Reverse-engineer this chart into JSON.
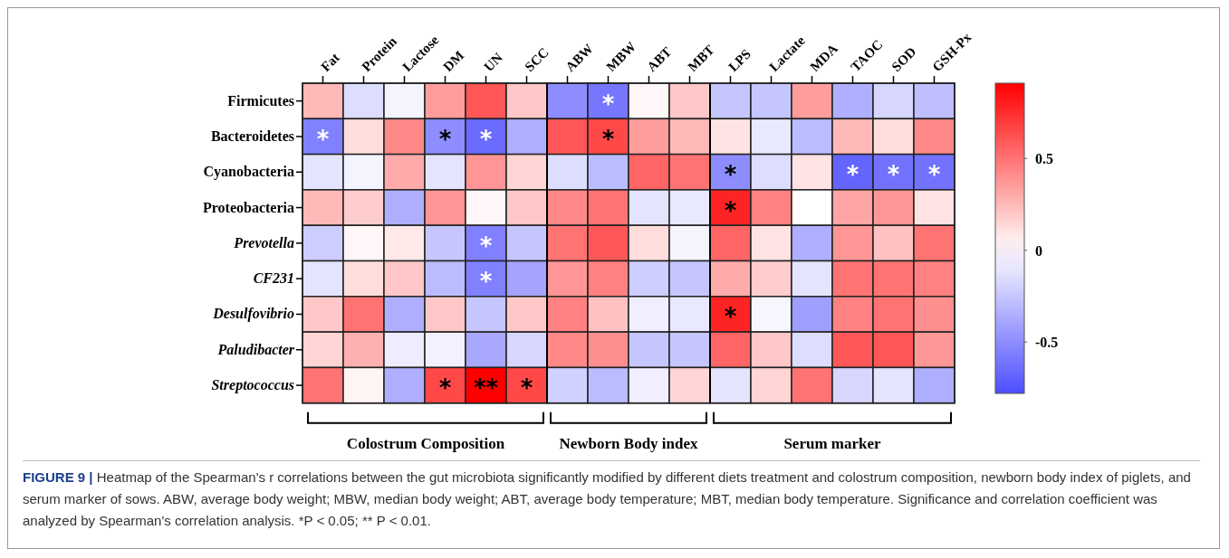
{
  "chart_data": {
    "type": "heatmap",
    "categories": [
      "Fat",
      "Protein",
      "Lactose",
      "DM",
      "UN",
      "SCC",
      "ABW",
      "MBW",
      "ABT",
      "MBT",
      "LPS",
      "Lactate",
      "MDA",
      "TAOC",
      "SOD",
      "GSH-Px"
    ],
    "y_categories": [
      "Firmicutes",
      "Bacteroidetes",
      "Cyanobacteria",
      "Proteobacteria",
      "Prevotella",
      "CF231",
      "Desulfovibrio",
      "Paludibacter",
      "Streptococcus"
    ],
    "cells": [
      [
        0.25,
        -0.15,
        -0.05,
        0.35,
        0.6,
        0.2,
        -0.5,
        -0.6,
        0.03,
        0.2,
        -0.25,
        -0.25,
        0.35,
        -0.35,
        -0.18,
        -0.28
      ],
      [
        -0.55,
        0.12,
        0.42,
        -0.5,
        -0.65,
        -0.35,
        0.6,
        0.65,
        0.35,
        0.25,
        0.1,
        -0.1,
        -0.3,
        0.25,
        0.12,
        0.42
      ],
      [
        -0.12,
        -0.05,
        0.3,
        -0.12,
        0.38,
        0.15,
        -0.15,
        -0.3,
        0.55,
        0.5,
        -0.5,
        -0.15,
        0.1,
        -0.68,
        -0.62,
        -0.62
      ],
      [
        0.25,
        0.18,
        -0.35,
        0.38,
        0.03,
        0.2,
        0.42,
        0.5,
        -0.12,
        -0.1,
        0.78,
        0.45,
        0.0,
        0.32,
        0.37,
        0.1
      ],
      [
        -0.22,
        0.03,
        0.08,
        -0.25,
        -0.55,
        -0.25,
        0.5,
        0.6,
        0.12,
        -0.05,
        0.55,
        0.1,
        -0.35,
        0.38,
        0.22,
        0.5
      ],
      [
        -0.12,
        0.12,
        0.2,
        -0.3,
        -0.55,
        -0.4,
        0.38,
        0.45,
        -0.22,
        -0.25,
        0.3,
        0.18,
        -0.12,
        0.5,
        0.5,
        0.45
      ],
      [
        0.2,
        0.5,
        -0.35,
        0.2,
        -0.25,
        0.2,
        0.45,
        0.22,
        -0.07,
        -0.1,
        0.78,
        -0.04,
        -0.42,
        0.45,
        0.5,
        0.4
      ],
      [
        0.15,
        0.28,
        -0.08,
        -0.06,
        -0.38,
        -0.18,
        0.42,
        0.4,
        -0.25,
        -0.25,
        0.55,
        0.2,
        -0.15,
        0.6,
        0.6,
        0.37
      ],
      [
        0.5,
        0.04,
        -0.35,
        0.65,
        0.91,
        0.65,
        -0.2,
        -0.3,
        -0.07,
        0.15,
        -0.12,
        0.15,
        0.5,
        -0.18,
        -0.12,
        -0.35
      ]
    ],
    "cell_labels": [
      [
        null,
        null,
        null,
        null,
        null,
        null,
        null,
        "*",
        null,
        null,
        null,
        null,
        null,
        null,
        null,
        null
      ],
      [
        "*",
        null,
        null,
        "*",
        "*",
        null,
        null,
        "*",
        null,
        null,
        null,
        null,
        null,
        null,
        null,
        null
      ],
      [
        null,
        null,
        null,
        null,
        null,
        null,
        null,
        null,
        null,
        null,
        "*",
        null,
        null,
        "*",
        "*",
        "*"
      ],
      [
        null,
        null,
        null,
        null,
        null,
        null,
        null,
        null,
        null,
        null,
        "*",
        null,
        null,
        null,
        null,
        null
      ],
      [
        null,
        null,
        null,
        null,
        "*",
        null,
        null,
        null,
        null,
        null,
        null,
        null,
        null,
        null,
        null,
        null
      ],
      [
        null,
        null,
        null,
        null,
        "*",
        null,
        null,
        null,
        null,
        null,
        null,
        null,
        null,
        null,
        null,
        null
      ],
      [
        null,
        null,
        null,
        null,
        null,
        null,
        null,
        null,
        null,
        null,
        "*",
        null,
        null,
        null,
        null,
        null
      ],
      [
        null,
        null,
        null,
        null,
        null,
        null,
        null,
        null,
        null,
        null,
        null,
        null,
        null,
        null,
        null,
        null
      ],
      [
        null,
        null,
        null,
        "*",
        "**",
        "*",
        null,
        null,
        null,
        null,
        null,
        null,
        null,
        null,
        null,
        null
      ]
    ],
    "clim": [
      -0.78,
      0.91
    ],
    "cticks": [
      -0.5,
      0,
      0.5
    ],
    "annotations": [
      "Colostrum Composition",
      "Newborn Body index",
      "Serum marker",
      "FIGURE 9 | Heatmap of the Spearman's r correlations between the gut microbiota significantly modified by different diets treatment and colostrum composition, newborn body index of piglets, and serum marker of sows. ABW, average body weight; MBW, median body weight; ABT, average body temperature; MBT, median body temperature. Significance and correlation coefficient was analyzed by Spearman's correlation analysis. *P < 0.05; ** P < 0.01."
    ]
  }
}
